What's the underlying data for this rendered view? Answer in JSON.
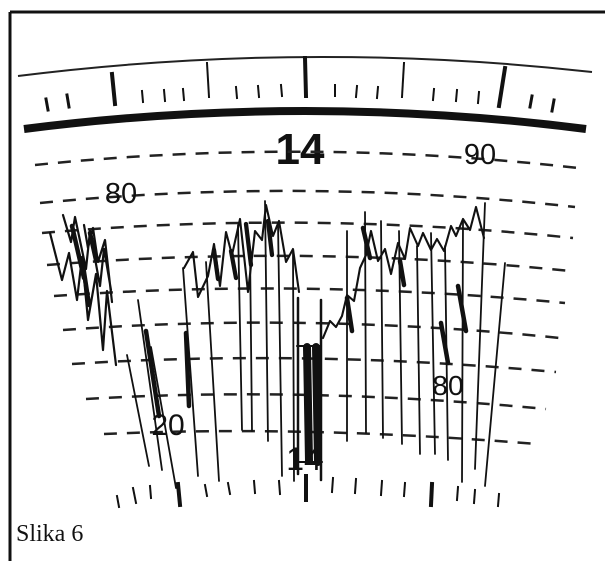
{
  "figure": {
    "caption": "Slika 6",
    "top_scale_label": "14",
    "left_scale_label": "80",
    "right_scale_label": "90",
    "left_record_label": "20",
    "center_record_label": "14",
    "right_record_label": "80"
  },
  "colors": {
    "ink": "#111111",
    "paper": "#ffffff"
  }
}
